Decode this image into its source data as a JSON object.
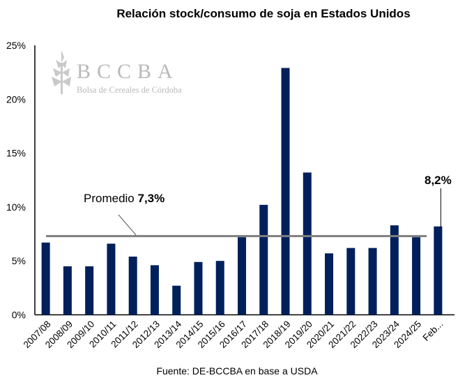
{
  "chart_data": {
    "type": "bar",
    "title": "Relación stock/consumo de soja en Estados Unidos",
    "categories": [
      "2007/08",
      "2008/09",
      "2009/10",
      "2010/11",
      "2011/12",
      "2012/13",
      "2013/14",
      "2014/15",
      "2015/16",
      "2016/17",
      "2017/18",
      "2018/19",
      "2019/20",
      "2020/21",
      "2021/22",
      "2022/23",
      "2023/24",
      "2024/25",
      "Feb..."
    ],
    "values": [
      6.7,
      4.5,
      4.5,
      6.6,
      5.4,
      4.6,
      2.7,
      4.9,
      5.0,
      7.2,
      10.2,
      22.9,
      13.2,
      5.7,
      6.2,
      6.2,
      8.3,
      7.2,
      8.2
    ],
    "ylim": [
      0,
      25
    ],
    "yticks": [
      "0%",
      "5%",
      "10%",
      "15%",
      "20%",
      "25%"
    ],
    "average": {
      "value": 7.3,
      "label": "Promedio",
      "value_label": "7,3%"
    },
    "last_label": "8,2%",
    "source": "Fuente: DE-BCCBA en base a USDA",
    "grid": false,
    "bar_color": "#00205b",
    "average_color": "#7f7f7f"
  },
  "logo": {
    "name": "BCCBA",
    "subtitle": "Bolsa de Cereales de Córdoba"
  }
}
